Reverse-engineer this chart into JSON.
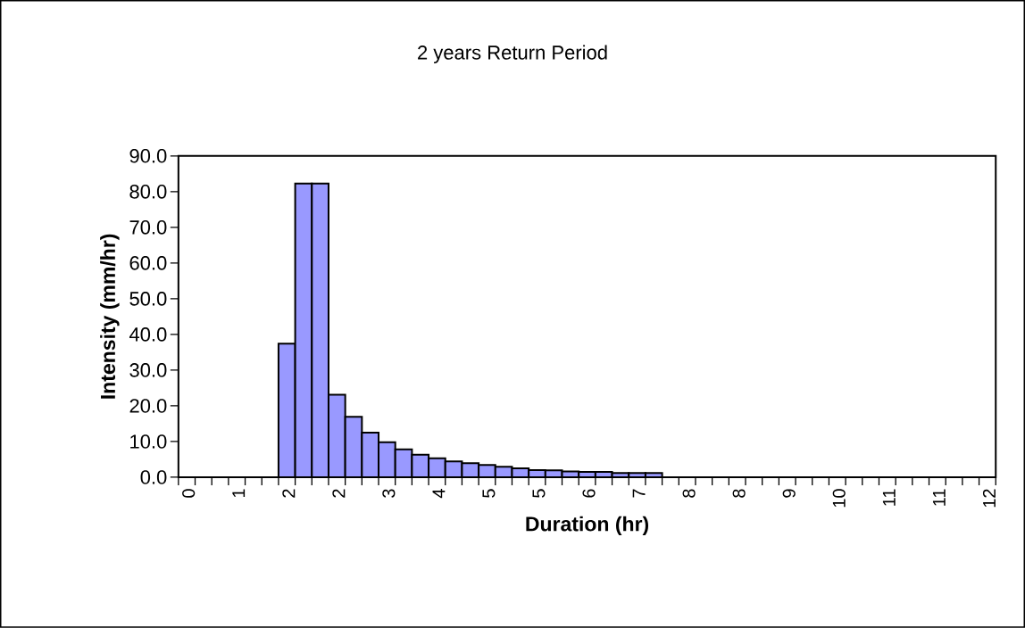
{
  "chart_data": {
    "type": "bar",
    "title": "2 years Return Period",
    "xlabel": "Duration (hr)",
    "ylabel": "Intensity (mm/hr)",
    "categories": [
      "0",
      null,
      null,
      "1",
      null,
      null,
      "2",
      null,
      null,
      "2",
      null,
      null,
      "3",
      null,
      null,
      "4",
      null,
      null,
      "5",
      null,
      null,
      "5",
      null,
      null,
      "6",
      null,
      null,
      "7",
      null,
      null,
      "8",
      null,
      null,
      "8",
      null,
      null,
      "9",
      null,
      null,
      "10",
      null,
      null,
      "11",
      null,
      null,
      "11",
      null,
      null,
      "12"
    ],
    "values": [
      null,
      null,
      null,
      null,
      null,
      null,
      37.4,
      82.3,
      82.3,
      23.1,
      16.9,
      12.5,
      9.8,
      7.8,
      6.3,
      5.3,
      4.4,
      3.9,
      3.4,
      2.9,
      2.5,
      2.0,
      1.9,
      1.6,
      1.5,
      1.5,
      1.2,
      1.2,
      1.2,
      null,
      null,
      null,
      null,
      null,
      null,
      null,
      null,
      null,
      null,
      null,
      null,
      null,
      null,
      null,
      null,
      null,
      null,
      null,
      null
    ],
    "color": "#9999ff",
    "ylim": [
      0,
      90
    ],
    "yticks": [
      {
        "value": 0,
        "label": "0.0"
      },
      {
        "value": 10,
        "label": "10.0"
      },
      {
        "value": 20,
        "label": "20.0"
      },
      {
        "value": 30,
        "label": "30.0"
      },
      {
        "value": 40,
        "label": "40.0"
      },
      {
        "value": 50,
        "label": "50.0"
      },
      {
        "value": 60,
        "label": "60.0"
      },
      {
        "value": 70,
        "label": "70.0"
      },
      {
        "value": 80,
        "label": "80.0"
      },
      {
        "value": 90,
        "label": "90.0"
      }
    ]
  }
}
